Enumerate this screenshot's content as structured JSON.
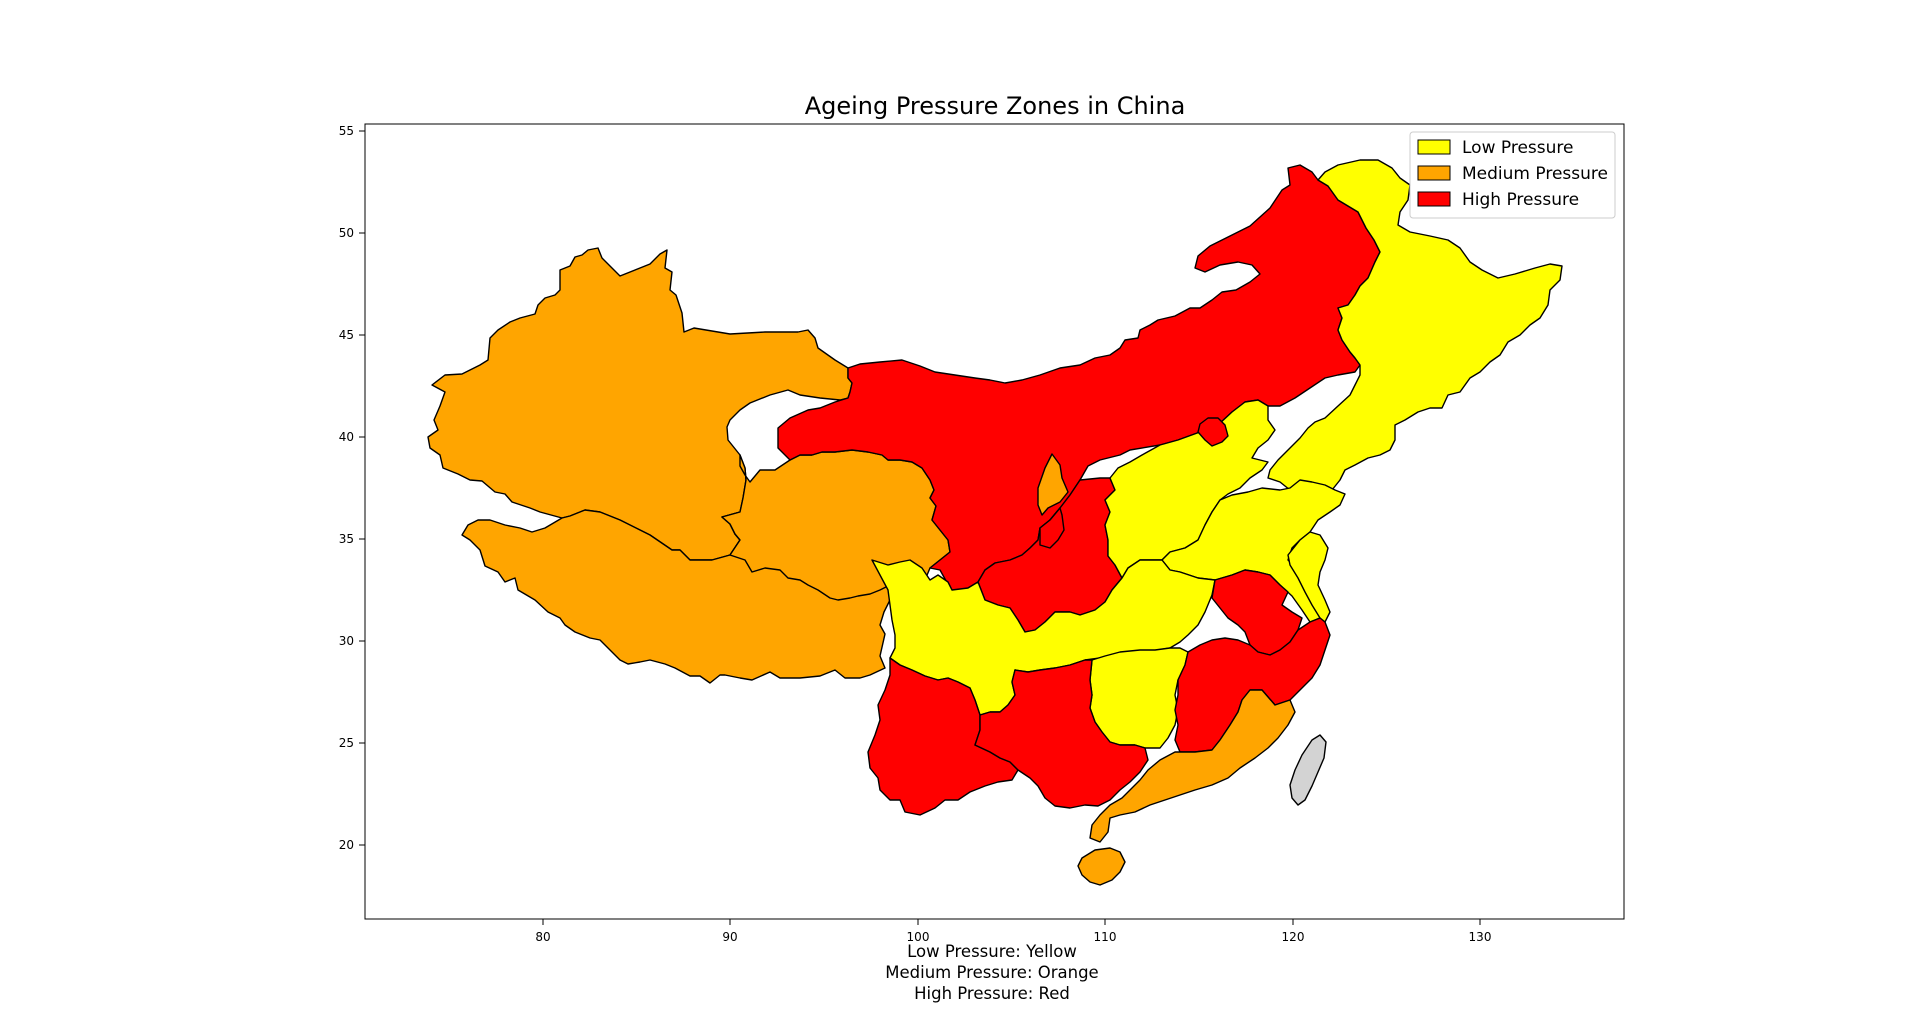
{
  "title": "Ageing Pressure Zones in China",
  "colors": {
    "low": "#ffff00",
    "medium": "#ffa500",
    "high": "#ff0000",
    "unassigned": "#d3d3d3",
    "border": "#000000"
  },
  "legend": {
    "placement": "top-right",
    "items": [
      {
        "label": "Low Pressure",
        "level": "low"
      },
      {
        "label": "Medium Pressure",
        "level": "medium"
      },
      {
        "label": "High Pressure",
        "level": "high"
      }
    ]
  },
  "caption": [
    "Low Pressure: Yellow",
    "Medium Pressure: Orange",
    "High Pressure: Red"
  ],
  "axes": {
    "xlim": [
      70.5,
      137.8
    ],
    "ylim": [
      16.0,
      55.5
    ],
    "xticks": [
      "80",
      "90",
      "100",
      "110",
      "120",
      "130"
    ],
    "yticks": [
      "20",
      "25",
      "30",
      "35",
      "40",
      "45",
      "50",
      "55"
    ],
    "grid": false
  }
}
